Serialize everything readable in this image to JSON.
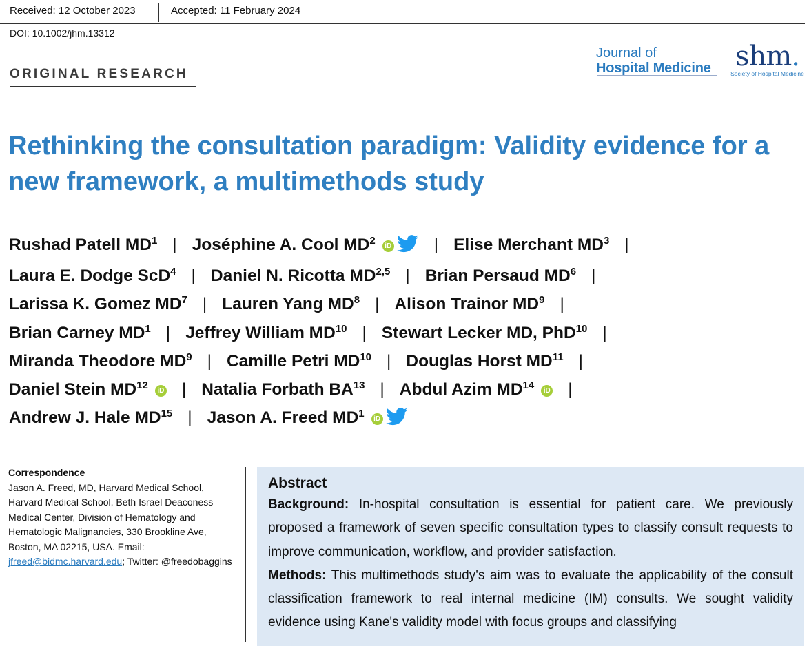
{
  "header": {
    "received": "Received: 12 October 2023",
    "accepted": "Accepted: 11 February 2024",
    "doi": "DOI: 10.1002/jhm.13312"
  },
  "section_label": "ORIGINAL RESEARCH",
  "journal": {
    "line1": "Journal of",
    "line2": "Hospital Medicine",
    "society_mark": "shm",
    "society_name": "Society of Hospital Medicine"
  },
  "title": "Rethinking the consultation paradigm: Validity evidence for a new framework, a multimethods study",
  "authors": [
    {
      "name": "Rushad Patell MD",
      "aff": "1"
    },
    {
      "name": "Joséphine A. Cool MD",
      "aff": "2"
    },
    {
      "name": "Elise Merchant MD",
      "aff": "3"
    },
    {
      "name": "Laura E. Dodge ScD",
      "aff": "4"
    },
    {
      "name": "Daniel N. Ricotta MD",
      "aff": "2,5"
    },
    {
      "name": "Brian Persaud MD",
      "aff": "6"
    },
    {
      "name": "Larissa K. Gomez MD",
      "aff": "7"
    },
    {
      "name": "Lauren Yang MD",
      "aff": "8"
    },
    {
      "name": "Alison Trainor MD",
      "aff": "9"
    },
    {
      "name": "Brian Carney MD",
      "aff": "1"
    },
    {
      "name": "Jeffrey William MD",
      "aff": "10"
    },
    {
      "name": "Stewart Lecker MD, PhD",
      "aff": "10"
    },
    {
      "name": "Miranda Theodore MD",
      "aff": "9"
    },
    {
      "name": "Camille Petri MD",
      "aff": "10"
    },
    {
      "name": "Douglas Horst MD",
      "aff": "11"
    },
    {
      "name": "Daniel Stein MD",
      "aff": "12"
    },
    {
      "name": "Natalia Forbath BA",
      "aff": "13"
    },
    {
      "name": "Abdul Azim MD",
      "aff": "14"
    },
    {
      "name": "Andrew J. Hale MD",
      "aff": "15"
    },
    {
      "name": "Jason A. Freed MD",
      "aff": "1"
    }
  ],
  "orcid_label": "iD",
  "correspondence": {
    "heading": "Correspondence",
    "text": "Jason A. Freed, MD, Harvard Medical School, Harvard Medical School, Beth Israel Deaconess Medical Center, Division of Hematology and Hematologic Malignancies, 330 Brookline Ave, Boston, MA 02215, USA.",
    "email_label": "Email:",
    "email": "jfreed@bidmc.harvard.edu",
    "twitter_text": "; Twitter: @freedobaggins"
  },
  "abstract": {
    "heading": "Abstract",
    "background_label": "Background:",
    "background_text": " In-hospital consultation is essential for patient care. We previously proposed a framework of seven specific consultation types to classify consult requests to improve communication, workflow, and provider satisfaction.",
    "methods_label": "Methods:",
    "methods_text": " This multimethods study's aim was to evaluate the applicability of the consult classification framework to real internal medicine (IM) consults. We sought validity evidence using Kane's validity model with focus groups and classifying"
  },
  "colors": {
    "title_blue": "#2f7fc1",
    "abstract_bg": "#dde8f4",
    "orcid_green": "#a6ce39",
    "twitter_blue": "#1d9bf0",
    "shm_navy": "#1a3d7a"
  }
}
